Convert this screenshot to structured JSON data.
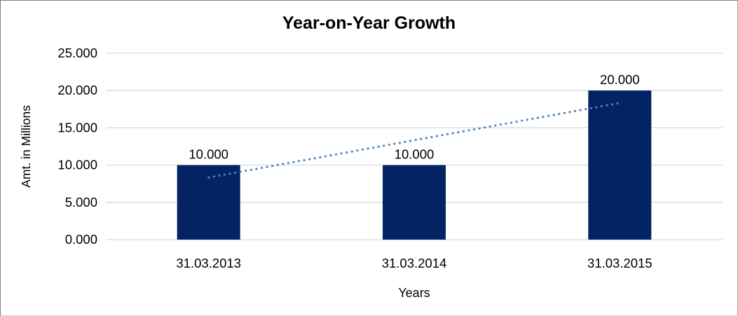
{
  "chart_data": {
    "type": "bar",
    "title": "Year-on-Year Growth",
    "xlabel": "Years",
    "ylabel": "Amt. in Millions",
    "categories": [
      "31.03.2013",
      "31.03.2014",
      "31.03.2015"
    ],
    "values": [
      10,
      10,
      20
    ],
    "value_labels": [
      "10.000",
      "10.000",
      "20.000"
    ],
    "ylim": [
      0,
      25
    ],
    "yticks": [
      0,
      5,
      10,
      15,
      20,
      25
    ],
    "ytick_labels": [
      "0.000",
      "5.000",
      "10.000",
      "15.000",
      "20.000",
      "25.000"
    ],
    "grid": true,
    "legend": "none",
    "trendline": {
      "type": "linear",
      "style": "dotted",
      "start_category_index": 0,
      "end_category_index": 2,
      "start_value": 8.333,
      "end_value": 18.333
    },
    "colors": {
      "bar": "#042365",
      "trendline": "#4f81bd",
      "gridline": "#d9d9d9",
      "text": "#000000"
    }
  }
}
